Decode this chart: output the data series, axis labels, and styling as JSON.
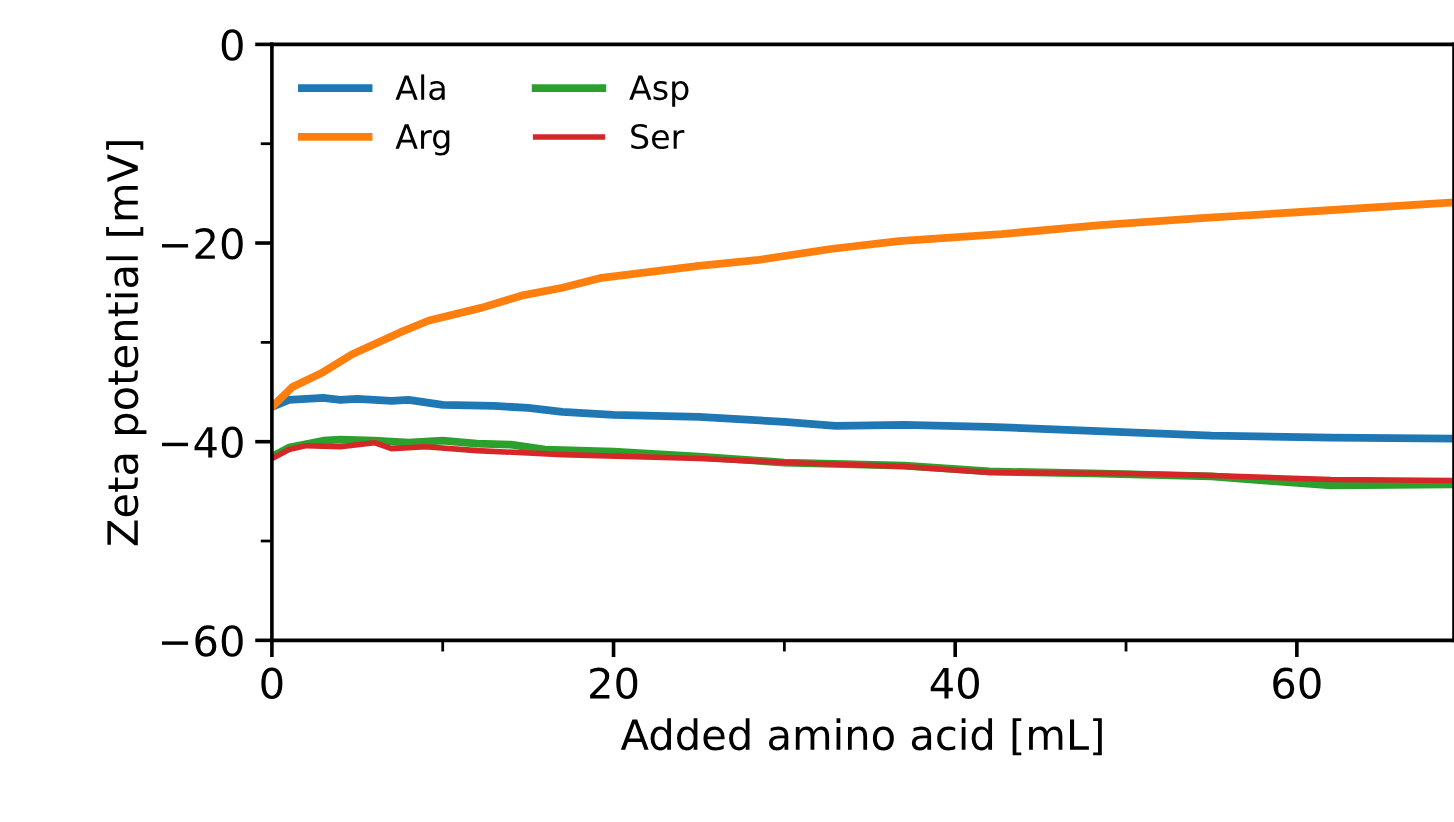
{
  "chart_data": {
    "type": "line",
    "xlabel": "Added amino acid [mL]",
    "ylabel": "Zeta potential [mV]",
    "xlim": [
      0,
      69.2
    ],
    "ylim": [
      -60,
      0
    ],
    "xticks": [
      0,
      20,
      40,
      60
    ],
    "yticks": [
      -60,
      -40,
      -20,
      0
    ],
    "grid": false,
    "legend": "top left",
    "marker": "none",
    "line_style": "solid",
    "series": [
      {
        "name": "Ala",
        "color": "#1f77b4",
        "x": [
          0,
          1,
          3,
          4,
          5,
          7,
          8,
          10,
          13,
          15,
          17,
          20,
          25,
          30,
          33,
          37,
          42,
          48,
          55,
          62,
          69.2
        ],
        "values": [
          -36.5,
          -35.8,
          -35.6,
          -35.8,
          -35.7,
          -35.9,
          -35.8,
          -36.3,
          -36.4,
          -36.6,
          -37,
          -37.3,
          -37.5,
          -38.0,
          -38.4,
          -38.3,
          -38.5,
          -38.9,
          -39.4,
          -39.6,
          -39.7
        ]
      },
      {
        "name": "Arg",
        "color": "#ff7f0e",
        "x": [
          0,
          1.2,
          3,
          4.7,
          7.5,
          9.2,
          12.3,
          14.6,
          17,
          19.3,
          25,
          28.5,
          32.7,
          36.7,
          42.7,
          48.5,
          54.4,
          60,
          69.2
        ],
        "values": [
          -36.5,
          -34.5,
          -33,
          -31.2,
          -29,
          -27.8,
          -26.5,
          -25.3,
          -24.5,
          -23.5,
          -22.3,
          -21.7,
          -20.6,
          -19.8,
          -19.1,
          -18.2,
          -17.5,
          -16.9,
          -15.9
        ]
      },
      {
        "name": "Asp",
        "color": "#2ca02c",
        "x": [
          0,
          1,
          3,
          4,
          6,
          8,
          10,
          12,
          14,
          16,
          20,
          25,
          30,
          37,
          42,
          48,
          55,
          62,
          69.2
        ],
        "values": [
          -41.5,
          -40.6,
          -39.9,
          -39.8,
          -39.9,
          -40.1,
          -39.9,
          -40.2,
          -40.3,
          -40.8,
          -41.0,
          -41.5,
          -42.1,
          -42.4,
          -43,
          -43.2,
          -43.5,
          -44.4,
          -44.3
        ]
      },
      {
        "name": "Ser",
        "color": "#d62728",
        "x": [
          0,
          1,
          2,
          4,
          6,
          7,
          9,
          12,
          17,
          25,
          30,
          37,
          42,
          50,
          55,
          62,
          69.2
        ],
        "values": [
          -41.7,
          -40.8,
          -40.4,
          -40.5,
          -40.1,
          -40.7,
          -40.5,
          -40.9,
          -41.3,
          -41.7,
          -42.1,
          -42.5,
          -43.1,
          -43.2,
          -43.4,
          -43.8,
          -43.9
        ]
      }
    ]
  }
}
